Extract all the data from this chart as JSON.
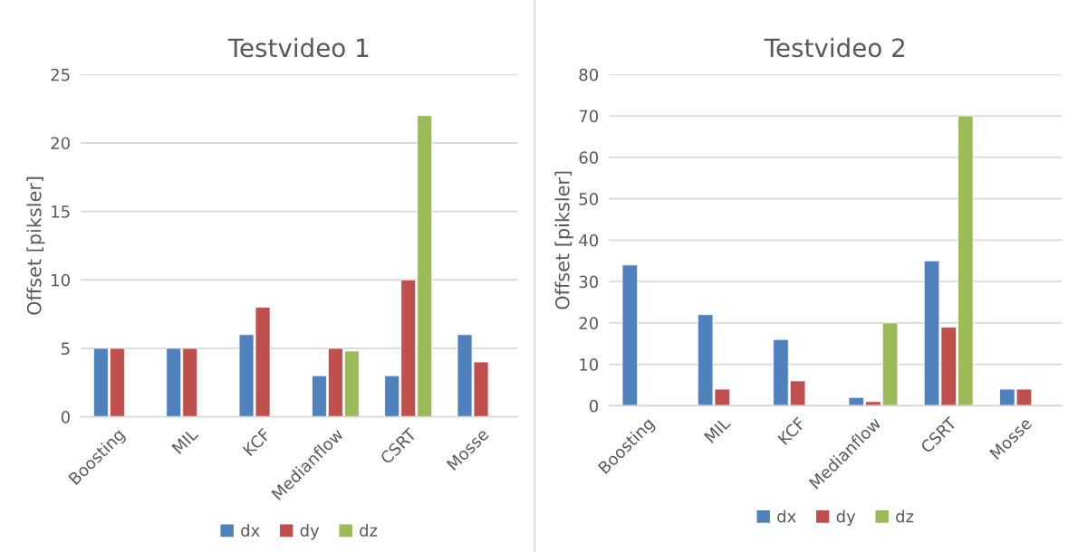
{
  "chart_data": [
    {
      "type": "bar",
      "title": "Testvideo 1",
      "ylabel": "Offset [piksler]",
      "categories": [
        "Boosting",
        "MIL",
        "KCF",
        "Medianflow",
        "CSRT",
        "Mosse"
      ],
      "ylim": [
        0,
        25
      ],
      "yticks": [
        0,
        5,
        10,
        15,
        20,
        25
      ],
      "grid": "y",
      "legend": "bottom",
      "series": [
        {
          "name": "dx",
          "color": "#4f81bd",
          "values": [
            5,
            5,
            6,
            3,
            3,
            6
          ]
        },
        {
          "name": "dy",
          "color": "#c0504d",
          "values": [
            5,
            5,
            8,
            5,
            10,
            4
          ]
        },
        {
          "name": "dz",
          "color": "#9bbb59",
          "values": [
            null,
            null,
            null,
            4.8,
            22,
            null
          ]
        }
      ]
    },
    {
      "type": "bar",
      "title": "Testvideo 2",
      "ylabel": "Offset [piksler]",
      "categories": [
        "Boosting",
        "MIL",
        "KCF",
        "Medianflow",
        "CSRT",
        "Mosse"
      ],
      "ylim": [
        0,
        80
      ],
      "yticks": [
        0,
        10,
        20,
        30,
        40,
        50,
        60,
        70,
        80
      ],
      "grid": "y",
      "legend": "bottom",
      "series": [
        {
          "name": "dx",
          "color": "#4f81bd",
          "values": [
            34,
            22,
            16,
            2,
            35,
            4
          ]
        },
        {
          "name": "dy",
          "color": "#c0504d",
          "values": [
            null,
            4,
            6,
            1,
            19,
            4
          ]
        },
        {
          "name": "dz",
          "color": "#9bbb59",
          "values": [
            null,
            null,
            null,
            20,
            70,
            null
          ]
        }
      ]
    }
  ]
}
